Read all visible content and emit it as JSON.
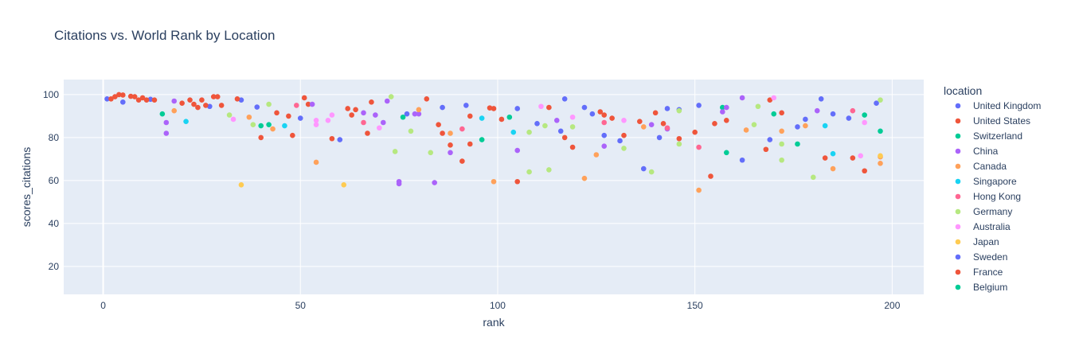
{
  "chart_data": {
    "type": "scatter",
    "title": "Citations vs. World Rank by Location",
    "xlabel": "rank",
    "ylabel": "scores_citations",
    "xlim": [
      -10,
      208
    ],
    "ylim": [
      7,
      107
    ],
    "x_ticks": [
      0,
      50,
      100,
      150,
      200
    ],
    "y_ticks": [
      20,
      40,
      60,
      80,
      100
    ],
    "grid": true,
    "legend_title": "location",
    "legend_placement": "right",
    "colors": {
      "plot_bg": "#E5ECF6",
      "grid": "#ffffff",
      "text": "#2a3f5f"
    },
    "series": [
      {
        "name": "United Kingdom",
        "color": "#636EFA",
        "points": [
          [
            1,
            98
          ],
          [
            5,
            96.5
          ],
          [
            12,
            97.8
          ],
          [
            27,
            94.5
          ],
          [
            35,
            97.5
          ],
          [
            39,
            94.2
          ],
          [
            50,
            89
          ],
          [
            60,
            79
          ],
          [
            77,
            91
          ],
          [
            86,
            94
          ],
          [
            92,
            95
          ],
          [
            105,
            93.5
          ],
          [
            110,
            86.5
          ],
          [
            116,
            83
          ],
          [
            117,
            98
          ],
          [
            122,
            94
          ],
          [
            124,
            91
          ],
          [
            127,
            81
          ],
          [
            131,
            78.5
          ],
          [
            137,
            65.5
          ],
          [
            141,
            80
          ],
          [
            143,
            93.5
          ],
          [
            146,
            93
          ],
          [
            151,
            95
          ],
          [
            162,
            69.5
          ],
          [
            169,
            79
          ],
          [
            176,
            85
          ],
          [
            178,
            88.5
          ],
          [
            182,
            98
          ],
          [
            185,
            91
          ],
          [
            189,
            89
          ],
          [
            196,
            96
          ]
        ]
      },
      {
        "name": "United States",
        "color": "#EF553B",
        "points": [
          [
            2,
            98
          ],
          [
            3,
            99
          ],
          [
            4,
            100
          ],
          [
            5,
            99.8
          ],
          [
            7,
            99.2
          ],
          [
            8,
            99
          ],
          [
            9,
            97.5
          ],
          [
            10,
            98.5
          ],
          [
            11,
            97.5
          ],
          [
            13,
            97.5
          ],
          [
            20,
            96
          ],
          [
            22,
            97.5
          ],
          [
            23,
            95.5
          ],
          [
            24,
            94
          ],
          [
            25,
            97.5
          ],
          [
            26,
            95
          ],
          [
            28,
            99
          ],
          [
            29,
            99
          ],
          [
            30,
            95
          ],
          [
            34,
            98
          ],
          [
            40,
            80
          ],
          [
            44,
            91.5
          ],
          [
            47,
            90
          ],
          [
            48,
            81
          ],
          [
            51,
            98.5
          ],
          [
            52,
            95.5
          ],
          [
            58,
            79.5
          ],
          [
            62,
            93.5
          ],
          [
            63,
            90.5
          ],
          [
            64,
            93
          ],
          [
            67,
            82
          ],
          [
            68,
            96.5
          ],
          [
            82,
            98
          ],
          [
            85,
            86
          ],
          [
            86,
            82
          ],
          [
            88,
            76.5
          ],
          [
            91,
            69
          ],
          [
            93,
            90
          ],
          [
            93,
            77
          ],
          [
            98,
            93.8
          ],
          [
            99,
            93.5
          ],
          [
            101,
            88.5
          ],
          [
            105,
            59.5
          ],
          [
            113,
            94
          ],
          [
            117,
            80
          ],
          [
            119,
            75.5
          ],
          [
            126,
            92
          ],
          [
            127,
            90.5
          ],
          [
            129,
            89
          ],
          [
            132,
            81
          ],
          [
            136,
            87.5
          ],
          [
            140,
            91.5
          ],
          [
            142,
            86.5
          ],
          [
            146,
            79.5
          ],
          [
            150,
            82.5
          ],
          [
            154,
            62
          ],
          [
            155,
            86.5
          ],
          [
            158,
            88
          ],
          [
            168,
            74.5
          ],
          [
            169,
            97.5
          ],
          [
            172,
            91.5
          ],
          [
            183,
            70.5
          ],
          [
            190,
            70.5
          ],
          [
            193,
            64.5
          ]
        ]
      },
      {
        "name": "Switzerland",
        "color": "#00CC96",
        "points": [
          [
            15,
            91
          ],
          [
            40,
            85.5
          ],
          [
            42,
            86
          ],
          [
            76,
            89.5
          ],
          [
            96,
            79
          ],
          [
            103,
            89.5
          ],
          [
            157,
            94
          ],
          [
            158,
            73
          ],
          [
            170,
            91
          ],
          [
            176,
            77
          ],
          [
            193,
            90.5
          ],
          [
            197,
            83
          ]
        ]
      },
      {
        "name": "China",
        "color": "#AB63FA",
        "points": [
          [
            16,
            82
          ],
          [
            16,
            87
          ],
          [
            18,
            97
          ],
          [
            53,
            95.5
          ],
          [
            66,
            91.5
          ],
          [
            69,
            90.5
          ],
          [
            71,
            87
          ],
          [
            72,
            97
          ],
          [
            75,
            59.5
          ],
          [
            75,
            58.5
          ],
          [
            79,
            91
          ],
          [
            80,
            91
          ],
          [
            84,
            59
          ],
          [
            88,
            73
          ],
          [
            105,
            74
          ],
          [
            115,
            88
          ],
          [
            127,
            76
          ],
          [
            139,
            86
          ],
          [
            143,
            84
          ],
          [
            157,
            92
          ],
          [
            158,
            94
          ],
          [
            162,
            98.5
          ],
          [
            181,
            92.5
          ]
        ]
      },
      {
        "name": "Canada",
        "color": "#FFA15A",
        "points": [
          [
            18,
            92.5
          ],
          [
            37,
            89.5
          ],
          [
            43,
            84
          ],
          [
            54,
            68.5
          ],
          [
            80,
            93
          ],
          [
            88,
            82
          ],
          [
            99,
            59.5
          ],
          [
            122,
            61
          ],
          [
            125,
            72
          ],
          [
            137,
            85
          ],
          [
            151,
            55.5
          ],
          [
            163,
            83.5
          ],
          [
            172,
            83
          ],
          [
            178,
            85.5
          ],
          [
            185,
            65.5
          ],
          [
            197,
            71
          ],
          [
            197,
            68
          ]
        ]
      },
      {
        "name": "Singapore",
        "color": "#19D3F3",
        "points": [
          [
            21,
            87.5
          ],
          [
            46,
            85.5
          ],
          [
            96,
            89
          ],
          [
            104,
            82.5
          ],
          [
            183,
            85.5
          ],
          [
            185,
            72.5
          ]
        ]
      },
      {
        "name": "Hong Kong",
        "color": "#FF6692",
        "points": [
          [
            49,
            95
          ],
          [
            66,
            87
          ],
          [
            91,
            84
          ],
          [
            127,
            87
          ],
          [
            143,
            84.5
          ],
          [
            151,
            75.5
          ],
          [
            190,
            92.5
          ]
        ]
      },
      {
        "name": "Germany",
        "color": "#B6E880",
        "points": [
          [
            32,
            90.5
          ],
          [
            38,
            86
          ],
          [
            42,
            95.5
          ],
          [
            73,
            99
          ],
          [
            74,
            73.5
          ],
          [
            78,
            83
          ],
          [
            83,
            73
          ],
          [
            108,
            82.5
          ],
          [
            108,
            64
          ],
          [
            112,
            85.5
          ],
          [
            113,
            65
          ],
          [
            119,
            85
          ],
          [
            132,
            75
          ],
          [
            139,
            64
          ],
          [
            146,
            77
          ],
          [
            146,
            92.5
          ],
          [
            165,
            86
          ],
          [
            166,
            94.5
          ],
          [
            172,
            69.5
          ],
          [
            172,
            77
          ],
          [
            180,
            61.5
          ],
          [
            197,
            97.5
          ]
        ]
      },
      {
        "name": "Australia",
        "color": "#FF97FF",
        "points": [
          [
            33,
            88.5
          ],
          [
            54,
            88
          ],
          [
            54,
            86
          ],
          [
            57,
            88
          ],
          [
            58,
            90.5
          ],
          [
            70,
            84.5
          ],
          [
            111,
            94.5
          ],
          [
            119,
            89.5
          ],
          [
            132,
            88
          ],
          [
            170,
            98.5
          ],
          [
            192,
            71.5
          ],
          [
            193,
            87
          ]
        ]
      },
      {
        "name": "Japan",
        "color": "#FECB52",
        "points": [
          [
            35,
            58
          ],
          [
            61,
            58
          ],
          [
            197,
            71.5
          ]
        ]
      }
    ],
    "legend_only": [
      {
        "name": "Sweden",
        "color": "#636EFA"
      },
      {
        "name": "France",
        "color": "#EF553B"
      },
      {
        "name": "Belgium",
        "color": "#00CC96"
      }
    ]
  }
}
